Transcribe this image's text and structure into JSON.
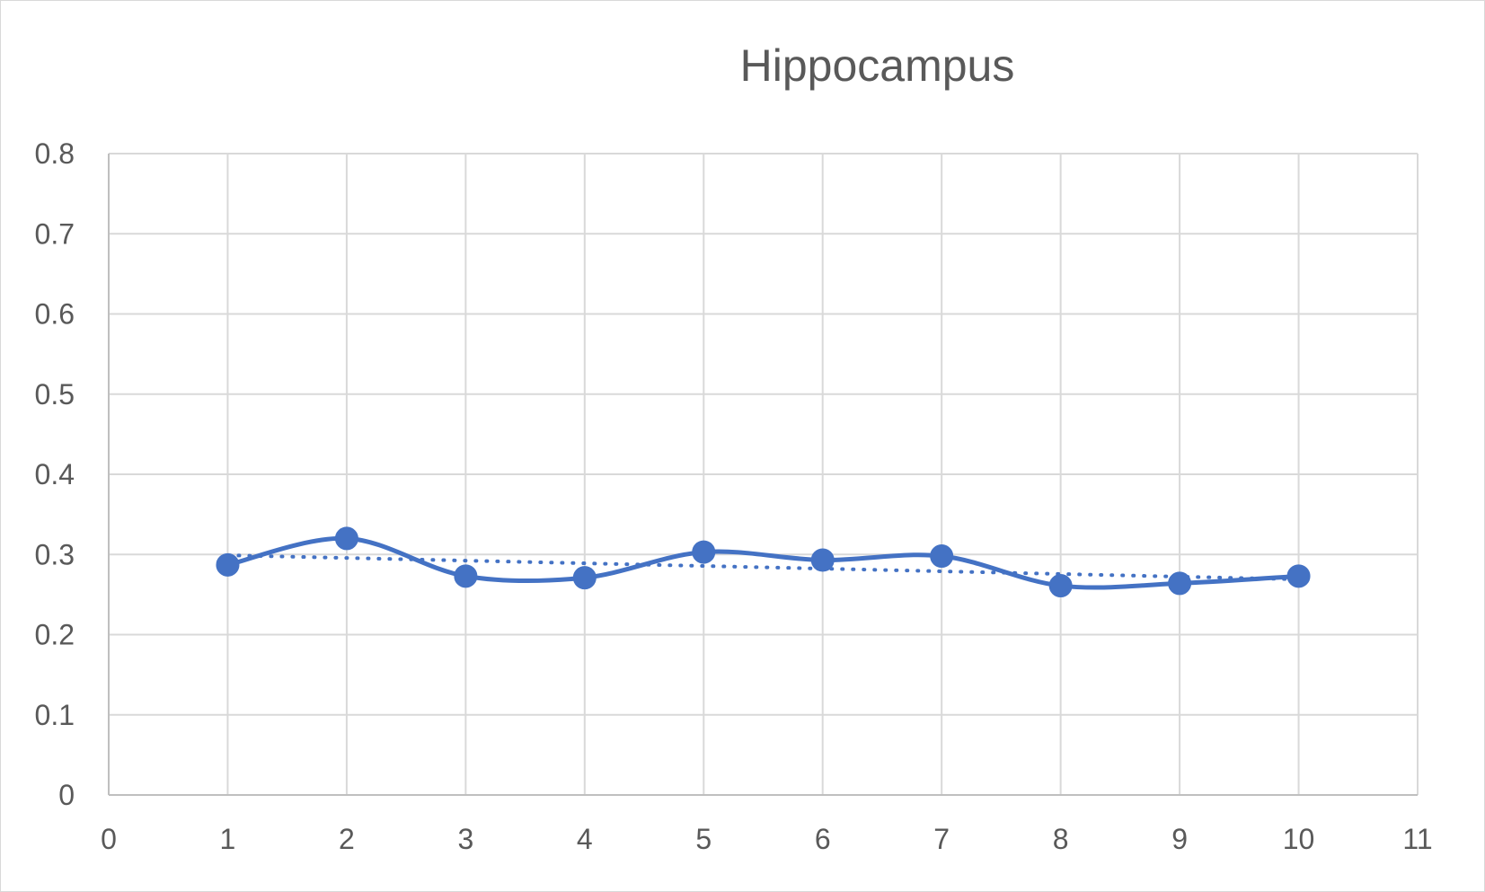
{
  "chart_data": {
    "type": "scatter",
    "title": "Hippocampus",
    "xlabel": "",
    "ylabel": "",
    "xlim": [
      0,
      11
    ],
    "ylim": [
      0,
      0.8
    ],
    "x_ticks": [
      0,
      1,
      2,
      3,
      4,
      5,
      6,
      7,
      8,
      9,
      10,
      11
    ],
    "y_ticks": [
      0,
      0.1,
      0.2,
      0.3,
      0.4,
      0.5,
      0.6,
      0.7,
      0.8
    ],
    "grid": true,
    "legend": "none",
    "series": [
      {
        "style": "smooth-line-with-markers",
        "color": "#4472c4",
        "x": [
          1,
          2,
          3,
          4,
          5,
          6,
          7,
          8,
          9,
          10
        ],
        "y": [
          0.287,
          0.32,
          0.273,
          0.271,
          0.303,
          0.293,
          0.298,
          0.261,
          0.264,
          0.273
        ]
      }
    ],
    "trendline": {
      "type": "linear",
      "style": "dotted",
      "color": "#4472c4",
      "x": [
        1,
        10
      ],
      "y": [
        0.299,
        0.269
      ]
    }
  }
}
